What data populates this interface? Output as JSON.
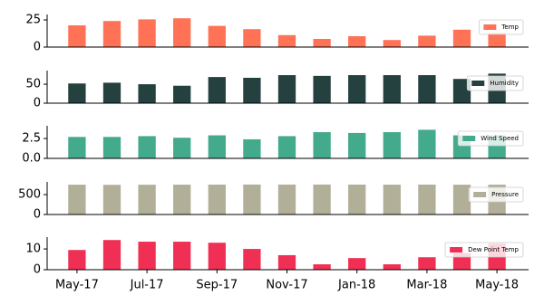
{
  "chart_data": {
    "type": "bar",
    "categories": [
      "May-17",
      null,
      "Jul-17",
      null,
      "Sep-17",
      null,
      "Nov-17",
      null,
      "Jan-18",
      null,
      "Mar-18",
      null,
      "May-18"
    ],
    "legend": "upper right",
    "series": [
      {
        "name": "Temp",
        "color": "#ff7256",
        "values": [
          20,
          24,
          25.5,
          26.5,
          19.5,
          16.5,
          11,
          7.5,
          10,
          6.5,
          10.5,
          16,
          13
        ],
        "ylim": [
          0,
          30
        ],
        "yticks": [
          0,
          25
        ]
      },
      {
        "name": "Humidity",
        "color": "#24403f",
        "values": [
          52,
          54,
          50,
          46,
          69,
          67,
          74,
          72,
          74,
          74,
          74,
          64,
          78
        ],
        "ylim": [
          0,
          86
        ],
        "yticks": [
          0,
          50
        ]
      },
      {
        "name": "Wind Speed",
        "color": "#43aa8b",
        "values": [
          2.7,
          2.7,
          2.8,
          2.6,
          2.9,
          2.4,
          2.8,
          3.3,
          3.2,
          3.3,
          3.6,
          2.9,
          2.9
        ],
        "ylim": [
          0,
          4.1
        ],
        "yticks": [
          {
            "value": 0,
            "label": "0.0"
          },
          {
            "value": 2.5,
            "label": "2.5"
          }
        ]
      },
      {
        "name": "Pressure",
        "color": "#b2af98",
        "values": [
          748,
          745,
          747,
          749,
          750,
          752,
          751,
          752,
          750,
          749,
          750,
          748,
          749
        ],
        "ylim": [
          0,
          818
        ],
        "yticks": [
          0,
          500
        ]
      },
      {
        "name": "Dew Point Temp",
        "color": "#ef3054",
        "values": [
          9.5,
          14.3,
          13.5,
          13.5,
          13,
          10,
          7,
          2.6,
          5.6,
          2.6,
          6,
          8,
          12.6
        ],
        "ylim": [
          0,
          15.7
        ],
        "yticks": [
          0,
          10
        ]
      }
    ]
  }
}
